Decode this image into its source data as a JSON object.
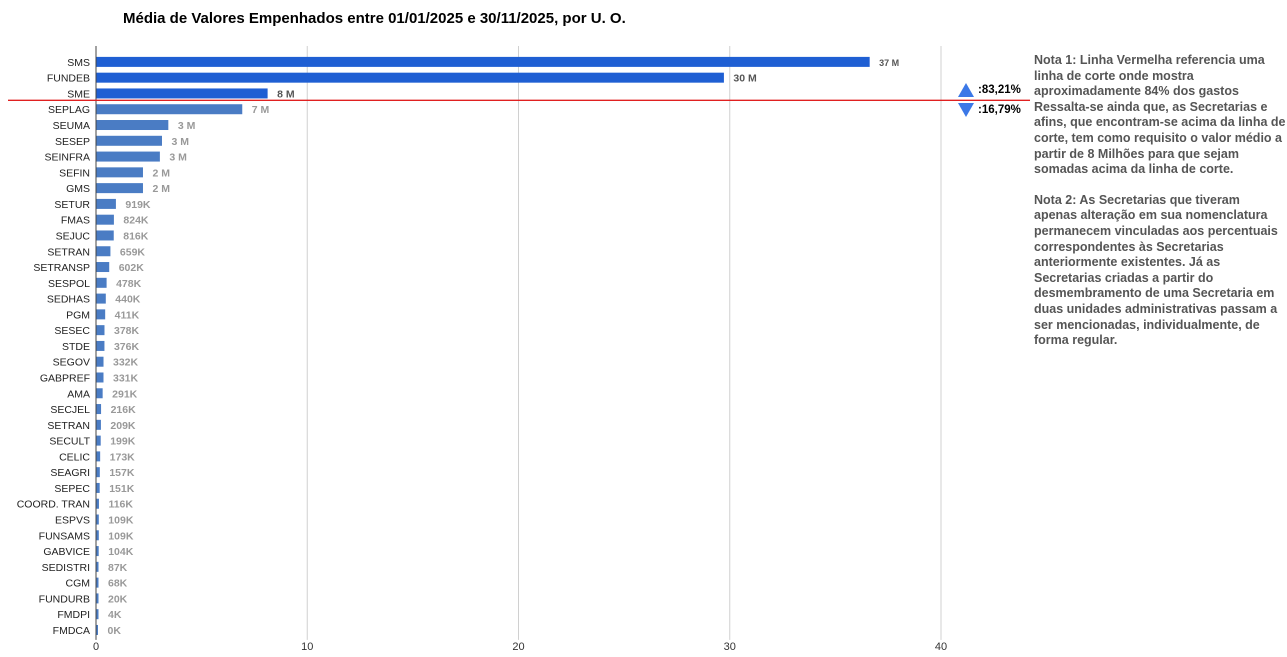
{
  "chart_data": {
    "type": "bar",
    "orientation": "horizontal",
    "title": "Média de Valores Empenhados entre 01/01/2025 e 30/11/2025, por U. O.",
    "categories": [
      "SMS",
      "FUNDEB",
      "SME",
      "SEPLAG",
      "SEUMA",
      "SESEP",
      "SEINFRA",
      "SEFIN",
      "GMS",
      "SETUR",
      "FMAS",
      "SEJUC",
      "SETRAN",
      "SETRANSP",
      "SESPOL",
      "SEDHAS",
      "PGM",
      "SESEC",
      "STDE",
      "SEGOV",
      "GABPREF",
      "AMA",
      "SECJEL",
      "SETRAN",
      "SECULT",
      "CELIC",
      "SEAGRI",
      "SEPEC",
      "COORD. TRAN",
      "ESPVS",
      "FUNSAMS",
      "GABVICE",
      "SEDISTRI",
      "CGM",
      "FUNDURB",
      "FMDPI",
      "FMDCA"
    ],
    "values": [
      36.6,
      29.7,
      8.1,
      6.9,
      3.4,
      3.1,
      3.0,
      2.2,
      2.2,
      0.919,
      0.824,
      0.816,
      0.659,
      0.602,
      0.478,
      0.44,
      0.411,
      0.378,
      0.376,
      0.332,
      0.331,
      0.291,
      0.216,
      0.209,
      0.199,
      0.173,
      0.157,
      0.151,
      0.116,
      0.109,
      0.109,
      0.104,
      0.087,
      0.068,
      0.02,
      0.004,
      0.0
    ],
    "data_labels": [
      "37 M",
      "30 M",
      "8 M",
      "7 M",
      "3 M",
      "3 M",
      "3 M",
      "2 M",
      "2 M",
      "919K",
      "824K",
      "816K",
      "659K",
      "602K",
      "478K",
      "440K",
      "411K",
      "378K",
      "376K",
      "332K",
      "331K",
      "291K",
      "216K",
      "209K",
      "199K",
      "173K",
      "157K",
      "151K",
      "116K",
      "109K",
      "109K",
      "104K",
      "87K",
      "68K",
      "20K",
      "4K",
      "0K"
    ],
    "highlighted_count": 3,
    "xlim": [
      0,
      40
    ],
    "xticks": [
      0,
      10,
      20,
      30,
      40
    ],
    "xtick_labels": [
      "0",
      "10",
      "20",
      "30",
      "40"
    ],
    "grid": true,
    "cutoff_line_after_index": 2,
    "colors": {
      "highlight_bar": "#1f5fd3",
      "bar": "#4a7cc4",
      "cutoff_line": "#e02020",
      "label_dark": "#555555",
      "label_light": "#999999",
      "grid": "#d0d0d0"
    }
  },
  "indicators": {
    "above_pct": ":83,21%",
    "below_pct": ":16,79%",
    "up_icon": "triangle-up-icon",
    "down_icon": "triangle-down-icon"
  },
  "notes": {
    "note1": "Nota 1: Linha Vermelha referencia uma linha de corte onde mostra aproximadamente 84% dos gastos Ressalta-se ainda que, as Secretarias e afins, que encontram-se acima da linha de corte, tem como requisito o valor médio a partir de 8 Milhões para que sejam somadas acima da linha de corte.",
    "note2": "Nota 2: As Secretarias que tiveram apenas alteração em sua nomenclatura permanecem vinculadas aos percentuais correspondentes às Secretarias anteriormente existentes. Já as Secretarias criadas a partir do desmembramento de uma Secretaria em duas unidades administrativas passam a ser mencionadas, individualmente, de forma regular."
  }
}
